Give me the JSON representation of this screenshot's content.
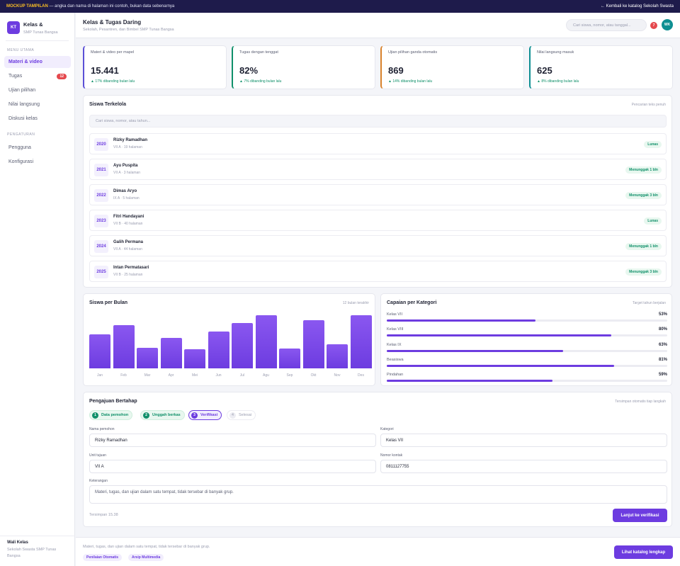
{
  "banner": {
    "tag": "MOCKUP TAMPILAN",
    "text": "— angka dan nama di halaman ini contoh, bukan data sebenarnya",
    "back_link": "← Kembali ke katalog Sekolah Swasta"
  },
  "sidebar": {
    "logo": "KT",
    "app_name": "Kelas &",
    "school": "SMP Tunas Bangsa",
    "section_main": "MENU UTAMA",
    "items": [
      {
        "label": "Materi & video",
        "active": true
      },
      {
        "label": "Tugas",
        "badge": "12"
      },
      {
        "label": "Ujian pilihan"
      },
      {
        "label": "Nilai langsung"
      },
      {
        "label": "Diskusi kelas"
      }
    ],
    "section_settings": "PENGATURAN",
    "settings_items": [
      {
        "label": "Pengguna"
      },
      {
        "label": "Konfigurasi"
      }
    ],
    "footer_role": "Wali Kelas",
    "footer_school": "Sekolah Swasta SMP Tunas Bangsa"
  },
  "header": {
    "title": "Kelas & Tugas Daring",
    "subtitle": "Sekolah, Pesantren, dan Bimbel SMP Tunas Bangsa",
    "search_placeholder": "Cari siswa, nomor, atau tanggal...",
    "notif_count": "7",
    "avatar": "WK"
  },
  "colors": {
    "accent": "#6d3ce0",
    "stat_borders": [
      "#5b4fd6",
      "#10906a",
      "#d9822b",
      "#0e8f92"
    ]
  },
  "stats": [
    {
      "label": "Materi & video per mapel",
      "value": "15.441",
      "delta": "▲ 17% dibanding bulan lalu"
    },
    {
      "label": "Tugas dengan tenggat",
      "value": "82%",
      "delta": "▲ 7% dibanding bulan lalu"
    },
    {
      "label": "Ujian pilihan ganda otomatis",
      "value": "869",
      "delta": "▲ 14% dibanding bulan lalu"
    },
    {
      "label": "Nilai langsung masuk",
      "value": "625",
      "delta": "▲ 8% dibanding bulan lalu"
    }
  ],
  "students": {
    "title": "Siswa Terkelola",
    "hint": "Pencarian teks penuh",
    "search_placeholder": "Cari siswa, nomor, atau tahun...",
    "rows": [
      {
        "year": "2020",
        "name": "Rizky Ramadhan",
        "meta": "VII A · 19 halaman",
        "status": "Lunas"
      },
      {
        "year": "2021",
        "name": "Ayu Puspita",
        "meta": "VII A · 3 halaman",
        "status": "Menunggak 1 bln"
      },
      {
        "year": "2022",
        "name": "Dimas Aryo",
        "meta": "IX A · 5 halaman",
        "status": "Menunggak 3 bln"
      },
      {
        "year": "2023",
        "name": "Fitri Handayani",
        "meta": "VII B · 40 halaman",
        "status": "Lunas"
      },
      {
        "year": "2024",
        "name": "Galih Permana",
        "meta": "VII A · 44 halaman",
        "status": "Menunggak 1 bln"
      },
      {
        "year": "2025",
        "name": "Intan Permatasari",
        "meta": "VII B · 25 halaman",
        "status": "Menunggak 3 bln"
      }
    ]
  },
  "monthly": {
    "title": "Siswa per Bulan",
    "hint": "12 bulan terakhir"
  },
  "chart_data": {
    "type": "bar",
    "categories": [
      "Jan",
      "Feb",
      "Mar",
      "Apr",
      "Mei",
      "Jun",
      "Jul",
      "Agu",
      "Sep",
      "Okt",
      "Nov",
      "Des"
    ],
    "values": [
      64,
      82,
      39,
      58,
      36,
      69,
      86,
      100,
      37,
      91,
      45,
      100
    ],
    "ylim": [
      0,
      100
    ]
  },
  "categories_panel": {
    "title": "Capaian per Kategori",
    "hint": "Target tahun berjalan",
    "items": [
      {
        "label": "Kelas VII",
        "pct": "53%",
        "value": 0.53
      },
      {
        "label": "Kelas VIII",
        "pct": "80%",
        "value": 0.8
      },
      {
        "label": "Kelas IX",
        "pct": "63%",
        "value": 0.63
      },
      {
        "label": "Beasiswa",
        "pct": "81%",
        "value": 0.81
      },
      {
        "label": "Pindahan",
        "pct": "59%",
        "value": 0.59
      }
    ]
  },
  "form": {
    "title": "Pengajuan Bertahap",
    "hint": "Tersimpan otomatis tiap langkah",
    "steps": [
      {
        "num": "1",
        "label": "Data pemohon"
      },
      {
        "num": "2",
        "label": "Unggah berkas"
      },
      {
        "num": "3",
        "label": "Verifikasi"
      },
      {
        "num": "4",
        "label": "Selesai"
      }
    ],
    "name_label": "Nama pemohon",
    "name_value": "Rizky Ramadhan",
    "category_label": "Kategori",
    "category_value": "Kelas VII",
    "unit_label": "Unit tujuan",
    "unit_value": "VII A",
    "contact_label": "Nomor kontak",
    "contact_value": "0811127755",
    "notes_label": "Keterangan",
    "notes_value": "Materi, tugas, dan ujian dalam satu tempat, tidak tersebar di banyak grup.",
    "saved_text": "Tersimpan 15.38",
    "next_button": "Lanjut ke verifikasi"
  },
  "footer": {
    "text": "Materi, tugas, dan ujian dalam satu tempat, tidak tersebar di banyak grup.",
    "chips": [
      "Penilaian Otomatis",
      "Arsip Multimedia"
    ],
    "button": "Lihat katalog lengkap"
  }
}
